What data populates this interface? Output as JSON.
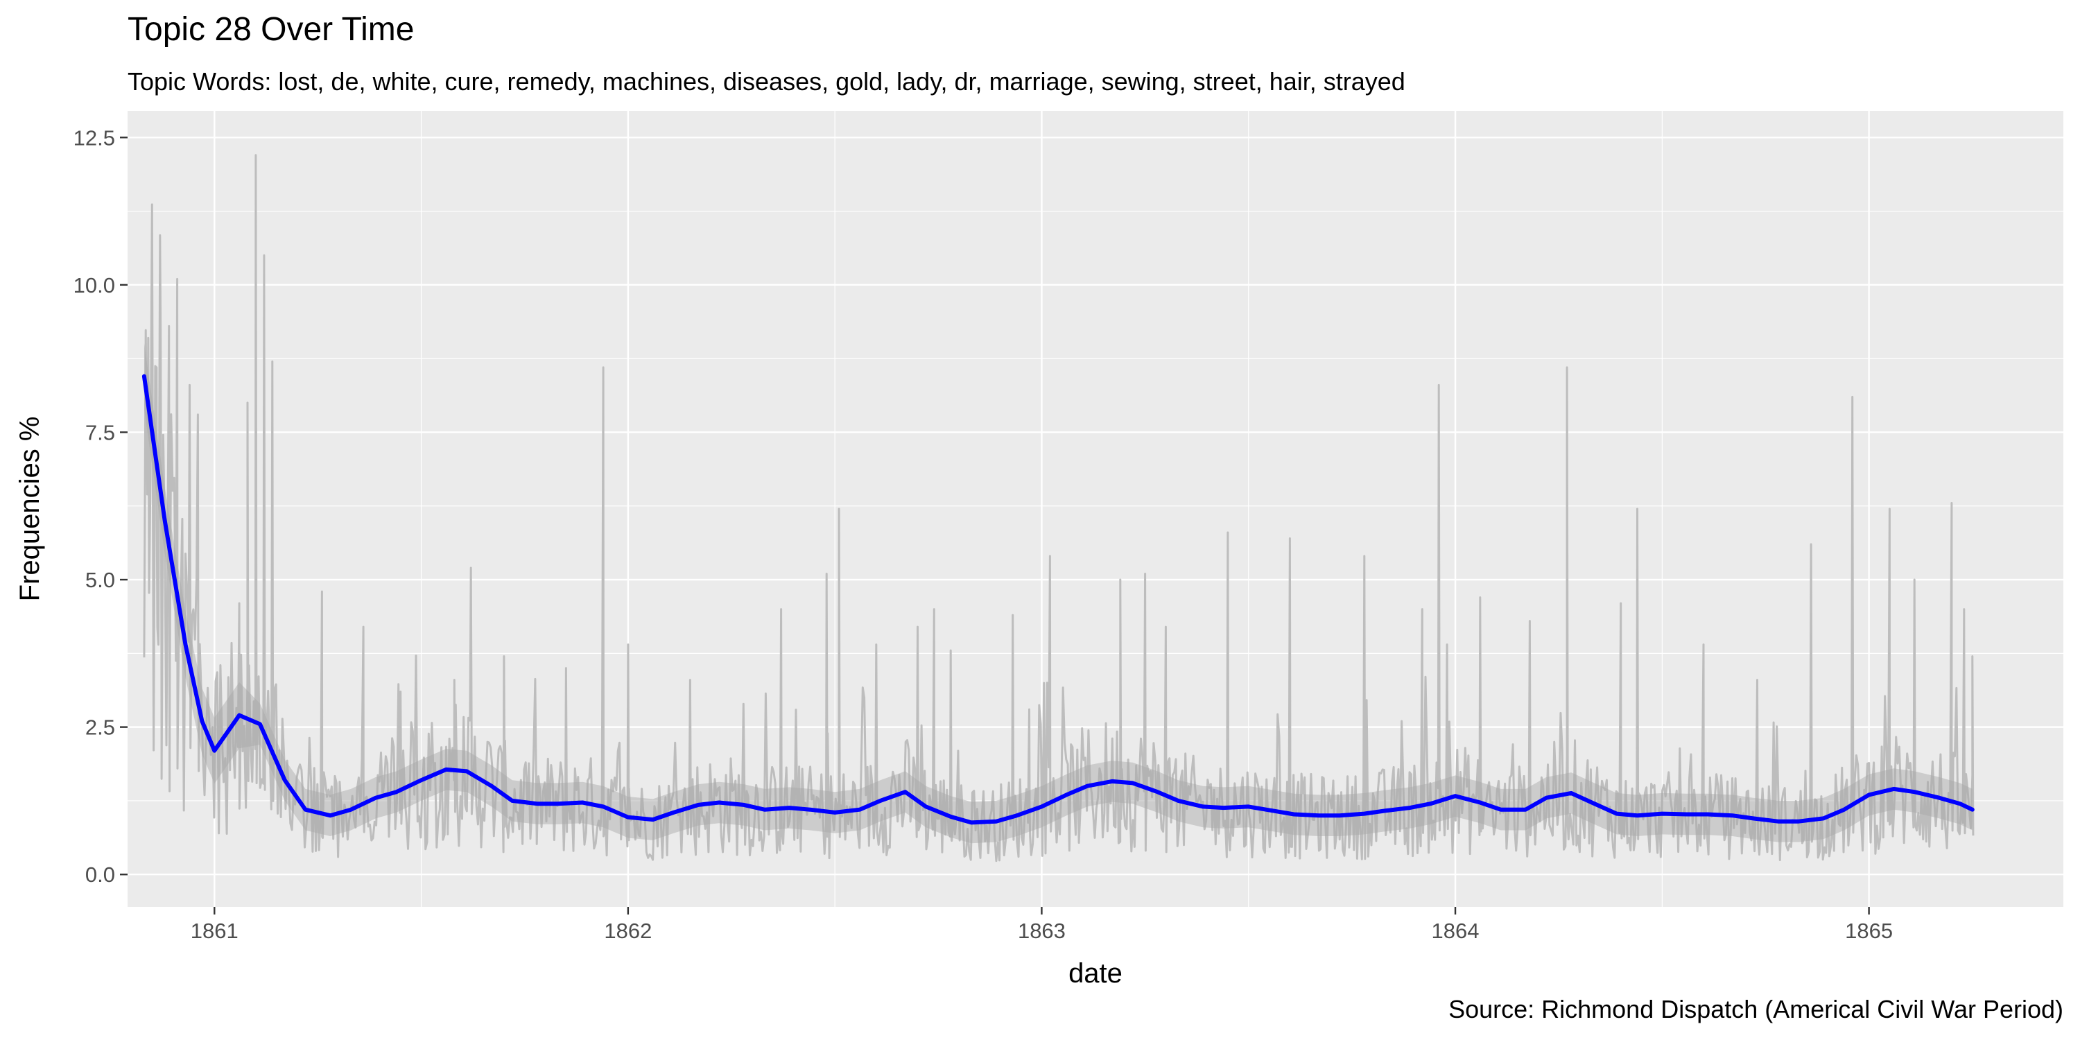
{
  "chart_data": {
    "type": "line",
    "title": "Topic 28 Over Time",
    "subtitle": "Topic Words: lost, de, white, cure, remedy, machines, diseases, gold, lady, dr, marriage, sewing, street, hair, strayed",
    "caption": "Source: Richmond Dispatch (Americal Civil War Period)",
    "xlabel": "date",
    "ylabel": "Frequencies %",
    "x_ticks": [
      "1861",
      "1862",
      "1863",
      "1864",
      "1865"
    ],
    "y_ticks": [
      "0.0",
      "2.5",
      "5.0",
      "7.5",
      "10.0",
      "12.5"
    ],
    "xlim": [
      1860.79,
      1865.47
    ],
    "ylim": [
      -0.55,
      12.95
    ],
    "grid": true,
    "colors": {
      "panel": "#ebebeb",
      "grid": "#ffffff",
      "raw_line": "#bdbdbd",
      "band": "#a6a6a6",
      "smooth_line": "#0000ff"
    },
    "series": [
      {
        "kind": "smooth",
        "x": [
          1860.83,
          1860.88,
          1860.93,
          1860.97,
          1861.0,
          1861.06,
          1861.11,
          1861.17,
          1861.22,
          1861.28,
          1861.33,
          1861.39,
          1861.44,
          1861.5,
          1861.56,
          1861.61,
          1861.67,
          1861.72,
          1861.78,
          1861.83,
          1861.89,
          1861.94,
          1862.0,
          1862.06,
          1862.11,
          1862.17,
          1862.22,
          1862.28,
          1862.33,
          1862.39,
          1862.44,
          1862.5,
          1862.56,
          1862.61,
          1862.67,
          1862.72,
          1862.78,
          1862.83,
          1862.89,
          1862.94,
          1863.0,
          1863.06,
          1863.11,
          1863.17,
          1863.22,
          1863.28,
          1863.33,
          1863.39,
          1863.44,
          1863.5,
          1863.56,
          1863.61,
          1863.67,
          1863.72,
          1863.78,
          1863.83,
          1863.89,
          1863.94,
          1864.0,
          1864.06,
          1864.11,
          1864.17,
          1864.22,
          1864.28,
          1864.33,
          1864.39,
          1864.44,
          1864.5,
          1864.56,
          1864.61,
          1864.67,
          1864.72,
          1864.78,
          1864.83,
          1864.89,
          1864.94,
          1865.0,
          1865.06,
          1865.11,
          1865.17,
          1865.22,
          1865.25
        ],
        "y": [
          8.45,
          6.0,
          3.9,
          2.6,
          2.1,
          2.7,
          2.55,
          1.6,
          1.1,
          1.0,
          1.1,
          1.3,
          1.4,
          1.6,
          1.78,
          1.75,
          1.5,
          1.25,
          1.2,
          1.2,
          1.22,
          1.15,
          0.97,
          0.93,
          1.05,
          1.18,
          1.22,
          1.18,
          1.1,
          1.13,
          1.1,
          1.05,
          1.1,
          1.25,
          1.4,
          1.15,
          0.98,
          0.88,
          0.9,
          1.0,
          1.15,
          1.35,
          1.5,
          1.58,
          1.55,
          1.4,
          1.25,
          1.15,
          1.13,
          1.15,
          1.08,
          1.02,
          1.0,
          1.0,
          1.03,
          1.08,
          1.13,
          1.2,
          1.33,
          1.22,
          1.1,
          1.1,
          1.3,
          1.38,
          1.22,
          1.03,
          1.0,
          1.03,
          1.02,
          1.02,
          1.0,
          0.95,
          0.9,
          0.9,
          0.95,
          1.1,
          1.35,
          1.45,
          1.4,
          1.3,
          1.2,
          1.1
        ],
        "band_halfwidth": 0.35
      },
      {
        "kind": "raw",
        "spikes": [
          {
            "x": 1860.84,
            "y": 9.1
          },
          {
            "x": 1860.86,
            "y": 8.6
          },
          {
            "x": 1860.87,
            "y": 9.2
          },
          {
            "x": 1860.89,
            "y": 9.3
          },
          {
            "x": 1860.91,
            "y": 10.1
          },
          {
            "x": 1860.94,
            "y": 8.3
          },
          {
            "x": 1860.96,
            "y": 7.8
          },
          {
            "x": 1861.06,
            "y": 4.6
          },
          {
            "x": 1861.08,
            "y": 8.0
          },
          {
            "x": 1861.1,
            "y": 12.2
          },
          {
            "x": 1861.12,
            "y": 10.5
          },
          {
            "x": 1861.14,
            "y": 8.7
          },
          {
            "x": 1861.26,
            "y": 4.8
          },
          {
            "x": 1861.36,
            "y": 4.2
          },
          {
            "x": 1861.45,
            "y": 3.1
          },
          {
            "x": 1861.58,
            "y": 3.3
          },
          {
            "x": 1861.62,
            "y": 5.2
          },
          {
            "x": 1861.7,
            "y": 3.7
          },
          {
            "x": 1861.85,
            "y": 3.5
          },
          {
            "x": 1861.94,
            "y": 8.6
          },
          {
            "x": 1862.0,
            "y": 3.9
          },
          {
            "x": 1862.15,
            "y": 3.3
          },
          {
            "x": 1862.37,
            "y": 4.5
          },
          {
            "x": 1862.48,
            "y": 5.1
          },
          {
            "x": 1862.51,
            "y": 6.2
          },
          {
            "x": 1862.6,
            "y": 3.9
          },
          {
            "x": 1862.7,
            "y": 4.2
          },
          {
            "x": 1862.74,
            "y": 4.5
          },
          {
            "x": 1862.78,
            "y": 3.8
          },
          {
            "x": 1862.93,
            "y": 4.4
          },
          {
            "x": 1862.97,
            "y": 2.8
          },
          {
            "x": 1863.02,
            "y": 5.4
          },
          {
            "x": 1863.19,
            "y": 5.0
          },
          {
            "x": 1863.25,
            "y": 5.1
          },
          {
            "x": 1863.3,
            "y": 4.2
          },
          {
            "x": 1863.45,
            "y": 5.8
          },
          {
            "x": 1863.6,
            "y": 5.7
          },
          {
            "x": 1863.78,
            "y": 5.4
          },
          {
            "x": 1863.92,
            "y": 4.5
          },
          {
            "x": 1863.96,
            "y": 8.3
          },
          {
            "x": 1863.98,
            "y": 3.9
          },
          {
            "x": 1864.06,
            "y": 4.7
          },
          {
            "x": 1864.18,
            "y": 4.3
          },
          {
            "x": 1864.27,
            "y": 8.6
          },
          {
            "x": 1864.4,
            "y": 4.6
          },
          {
            "x": 1864.44,
            "y": 6.2
          },
          {
            "x": 1864.6,
            "y": 3.9
          },
          {
            "x": 1864.73,
            "y": 3.3
          },
          {
            "x": 1864.86,
            "y": 5.6
          },
          {
            "x": 1864.96,
            "y": 8.1
          },
          {
            "x": 1865.05,
            "y": 6.2
          },
          {
            "x": 1865.11,
            "y": 5.0
          },
          {
            "x": 1865.2,
            "y": 6.3
          },
          {
            "x": 1865.23,
            "y": 4.5
          },
          {
            "x": 1865.25,
            "y": 3.7
          }
        ]
      }
    ]
  }
}
